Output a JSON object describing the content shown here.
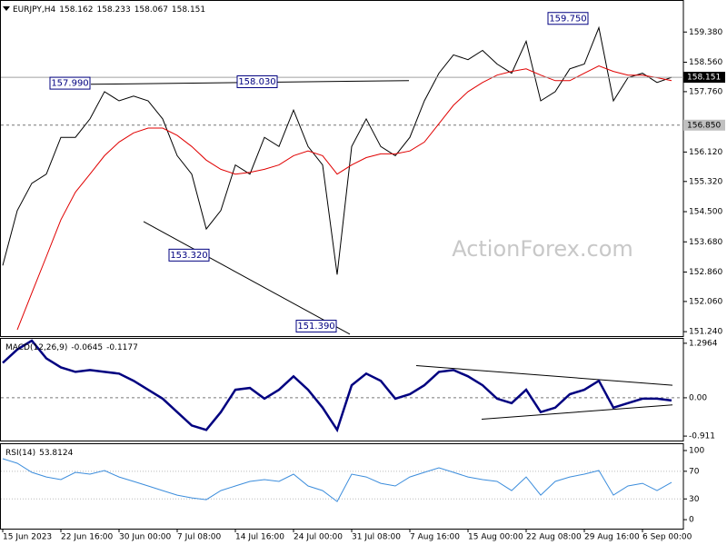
{
  "chart_data": [
    {
      "type": "line",
      "title": "EURJPY,H4",
      "ohlc": [
        158.162,
        158.233,
        158.067,
        158.151
      ],
      "watermark": "ActionForex.com",
      "x": [
        0,
        4,
        8,
        12,
        16,
        20,
        24,
        28,
        32,
        36,
        40,
        44,
        48,
        52,
        56,
        60,
        64,
        68,
        72,
        76,
        80,
        84,
        88,
        92,
        96,
        100,
        104,
        108,
        112,
        116,
        120,
        124,
        128,
        132,
        136,
        140,
        144,
        148,
        152,
        156,
        160,
        164,
        168,
        172,
        176,
        180,
        184
      ],
      "series": [
        {
          "color": "#000000",
          "show_last": true,
          "values": [
            153.04,
            154.53,
            155.27,
            155.52,
            156.52,
            156.52,
            157.02,
            157.76,
            157.51,
            157.64,
            157.51,
            157.02,
            156.02,
            155.52,
            154.03,
            154.53,
            155.77,
            155.52,
            156.52,
            156.27,
            157.26,
            156.27,
            155.77,
            152.79,
            156.27,
            157.02,
            156.27,
            156.02,
            156.52,
            157.51,
            158.26,
            158.76,
            158.63,
            158.88,
            158.51,
            158.26,
            159.13,
            157.51,
            157.76,
            158.38,
            158.51,
            159.5,
            157.51,
            158.14,
            158.26,
            158.01,
            158.151
          ]
        },
        {
          "color": "#e00000",
          "values": [
            null,
            151.29,
            152.29,
            153.28,
            154.28,
            155.03,
            155.52,
            156.02,
            156.39,
            156.64,
            156.77,
            156.77,
            156.57,
            156.27,
            155.9,
            155.65,
            155.52,
            155.57,
            155.65,
            155.77,
            156.02,
            156.15,
            156.02,
            155.52,
            155.77,
            155.97,
            156.07,
            156.07,
            156.15,
            156.39,
            156.89,
            157.39,
            157.76,
            158.01,
            158.21,
            158.31,
            158.38,
            158.21,
            158.06,
            158.06,
            158.26,
            158.46,
            158.31,
            158.21,
            158.21,
            158.14,
            158.06
          ]
        }
      ],
      "xlim": [
        0,
        187
      ],
      "ylim": [
        151.12,
        160.25
      ],
      "yticks": [
        {
          "value": 159.38,
          "label": "159.380"
        },
        {
          "value": 158.56,
          "label": "158.560"
        },
        {
          "value": 157.76,
          "label": "157.760"
        },
        {
          "value": 156.12,
          "label": "156.120"
        },
        {
          "value": 155.32,
          "label": "155.320"
        },
        {
          "value": 154.5,
          "label": "154.500"
        },
        {
          "value": 153.68,
          "label": "153.680"
        },
        {
          "value": 152.86,
          "label": "152.860"
        },
        {
          "value": 152.06,
          "label": "152.060"
        },
        {
          "value": 151.24,
          "label": "151.240"
        }
      ],
      "levels": [
        {
          "value": 156.85,
          "label": "156.850",
          "style": "dashed"
        }
      ],
      "annotations": [
        {
          "text": "157.990",
          "x": 24,
          "value": 157.99
        },
        {
          "text": "158.030",
          "x": 75.5,
          "value": 158.03
        },
        {
          "text": "153.320",
          "x": 56.75,
          "value": 153.32
        },
        {
          "text": "151.390",
          "x": 91.75,
          "value": 151.39
        },
        {
          "text": "159.750",
          "x": 161,
          "value": 159.75
        }
      ],
      "trendlines": [
        {
          "x": [
            24.25,
            111.75
          ],
          "y": [
            157.96,
            158.06
          ]
        },
        {
          "x": [
            38.75,
            95.5
          ],
          "y": [
            154.23,
            151.17
          ]
        }
      ]
    },
    {
      "type": "line",
      "title": "MACD(12,26,9)",
      "signal_value": -0.1177,
      "x": [
        0,
        4,
        8,
        12,
        16,
        20,
        24,
        28,
        32,
        36,
        40,
        44,
        48,
        52,
        56,
        60,
        64,
        68,
        72,
        76,
        80,
        84,
        88,
        92,
        96,
        100,
        104,
        108,
        112,
        116,
        120,
        124,
        128,
        132,
        136,
        140,
        144,
        148,
        152,
        156,
        160,
        164,
        168,
        172,
        176,
        180,
        184
      ],
      "series": [
        {
          "color": "#000080",
          "values": [
            0.829,
            1.148,
            1.36,
            0.935,
            0.723,
            0.616,
            0.659,
            0.616,
            0.574,
            0.404,
            0.191,
            -0.021,
            -0.34,
            -0.659,
            -0.765,
            -0.34,
            0.191,
            0.234,
            -0.021,
            0.191,
            0.51,
            0.191,
            -0.234,
            -0.765,
            0.298,
            0.574,
            0.404,
            -0.021,
            0.085,
            0.298,
            0.616,
            0.659,
            0.51,
            0.298,
            -0.021,
            -0.128,
            0.191,
            -0.34,
            -0.234,
            0.085,
            0.191,
            0.404,
            -0.234,
            -0.128,
            -0.021,
            -0.021,
            -0.0645
          ]
        }
      ],
      "xlim": [
        0,
        187
      ],
      "ylim": [
        -1.017,
        1.424
      ],
      "yticks": [
        1.2964,
        {
          "value": 0,
          "label": "0.00"
        },
        -0.911
      ],
      "levels": [
        {
          "value": 0,
          "style": "dashed"
        }
      ],
      "trendlines": [
        {
          "x": [
            113.75,
            184.25
          ],
          "y": [
            0.765,
            0.2975
          ]
        },
        {
          "x": [
            131.75,
            184.25
          ],
          "y": [
            -0.51,
            -0.17
          ]
        }
      ]
    },
    {
      "type": "line",
      "title": "RSI(14)",
      "x": [
        0,
        4,
        8,
        12,
        16,
        20,
        24,
        28,
        32,
        36,
        40,
        44,
        48,
        52,
        56,
        60,
        64,
        68,
        72,
        76,
        80,
        84,
        88,
        92,
        96,
        100,
        104,
        108,
        112,
        116,
        120,
        124,
        128,
        132,
        136,
        140,
        144,
        148,
        152,
        156,
        160,
        164,
        168,
        172,
        176,
        180,
        184
      ],
      "series": [
        {
          "color": "#3c8ddc",
          "values": [
            88.2,
            81.6,
            68.4,
            61.8,
            57.9,
            68.4,
            65.8,
            71.1,
            61.8,
            55.3,
            48.7,
            42.1,
            35.5,
            31.6,
            28.9,
            42.1,
            48.7,
            55.3,
            57.9,
            55.3,
            65.8,
            48.7,
            42.1,
            26.3,
            65.8,
            61.8,
            52.6,
            48.7,
            61.8,
            68.4,
            75,
            68.4,
            61.8,
            57.9,
            55.3,
            42.1,
            61.8,
            35.5,
            55.3,
            61.8,
            65.8,
            71.1,
            35.5,
            48.7,
            52.6,
            42.1,
            53.8124
          ]
        }
      ],
      "xlim": [
        0,
        187
      ],
      "ylim": [
        -13,
        110.5
      ],
      "yticks": [
        100,
        70,
        30,
        0
      ],
      "levels": [
        {
          "value": 70,
          "style": "dotted"
        },
        {
          "value": 30,
          "style": "dotted"
        }
      ],
      "xticks": [
        {
          "value": 0,
          "label": "15 Jun 2023"
        },
        {
          "value": 16,
          "label": "22 Jun 16:00"
        },
        {
          "value": 32,
          "label": "30 Jun 00:00"
        },
        {
          "value": 48,
          "label": "7 Jul 08:00"
        },
        {
          "value": 64,
          "label": "14 Jul 16:00"
        },
        {
          "value": 80,
          "label": "24 Jul 00:00"
        },
        {
          "value": 96,
          "label": "31 Jul 08:00"
        },
        {
          "value": 112,
          "label": "7 Aug 16:00"
        },
        {
          "value": 128,
          "label": "15 Aug 00:00"
        },
        {
          "value": 144,
          "label": "22 Aug 08:00"
        },
        {
          "value": 160,
          "label": "29 Aug 16:00"
        },
        {
          "value": 176,
          "label": "6 Sep 00:00"
        }
      ]
    }
  ]
}
